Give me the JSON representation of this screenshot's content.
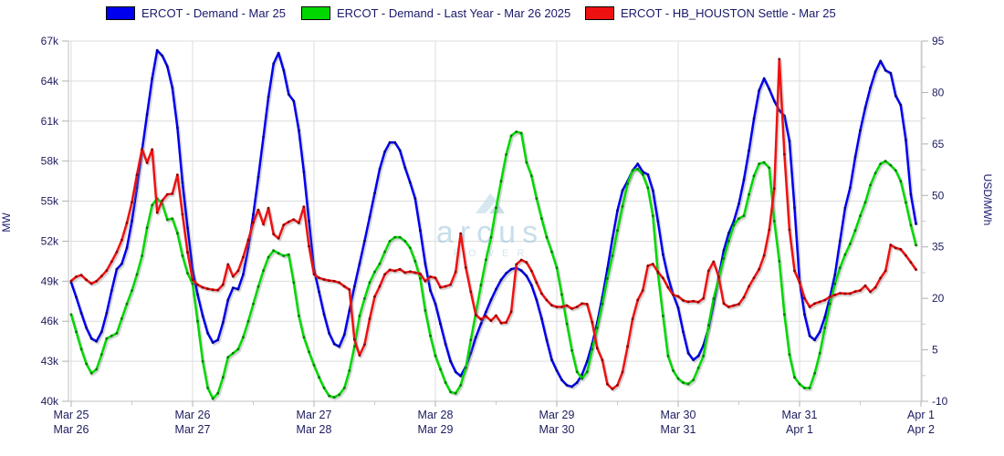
{
  "watermark": {
    "brand": "arcus",
    "word": "POWER",
    "color": "#9cc4da"
  },
  "chart_data": {
    "type": "line",
    "title": "",
    "x_unit": "hours",
    "x_start": "Mar 25 00:00",
    "hours_per_day": 24,
    "days": 7,
    "grid": true,
    "legend_position": "top",
    "axes": {
      "left": {
        "title": "MW",
        "range": [
          40000,
          67000
        ],
        "tick_labels": [
          "67k",
          "64k",
          "61k",
          "58k",
          "55k",
          "52k",
          "49k",
          "46k",
          "43k",
          "40k"
        ],
        "tick_values": [
          67,
          64,
          61,
          58,
          55,
          52,
          49,
          46,
          43,
          40
        ]
      },
      "right": {
        "title": "USD/MWh",
        "range": [
          -10,
          95
        ],
        "tick_labels": [
          "95",
          "80",
          "65",
          "50",
          "35",
          "20",
          "5",
          "-10"
        ],
        "tick_values": [
          95,
          80,
          65,
          50,
          35,
          20,
          5,
          -10
        ]
      },
      "x": {
        "top_labels": [
          "Mar 25",
          "Mar 26",
          "Mar 27",
          "Mar 28",
          "Mar 29",
          "Mar 30",
          "Mar 31",
          "Apr 1"
        ],
        "bottom_labels": [
          "Mar 26",
          "Mar 27",
          "Mar 28",
          "Mar 29",
          "Mar 30",
          "Mar 31",
          "Apr 1",
          "Apr 2"
        ]
      }
    },
    "series": [
      {
        "name": "ERCOT - Demand - Mar 25",
        "axis": "left",
        "units": "k MW",
        "color": "#0000ee",
        "marker_color": "#00008b",
        "values": [
          48.9,
          47.8,
          46.6,
          45.5,
          44.7,
          44.5,
          45.2,
          46.6,
          48.3,
          49.9,
          50.3,
          51.5,
          53.5,
          56.0,
          58.8,
          61.5,
          64.2,
          66.3,
          65.9,
          65.1,
          63.5,
          60.5,
          56.4,
          53.0,
          49.8,
          48.0,
          46.4,
          45.1,
          44.4,
          44.6,
          45.9,
          47.6,
          48.5,
          48.4,
          49.5,
          51.5,
          54.0,
          56.8,
          59.8,
          62.8,
          65.3,
          66.1,
          64.8,
          63.0,
          62.5,
          60.3,
          57.2,
          53.5,
          49.9,
          48.2,
          46.5,
          45.1,
          44.3,
          44.1,
          45.0,
          46.8,
          48.6,
          50.3,
          52.0,
          53.8,
          55.6,
          57.4,
          58.7,
          59.4,
          59.4,
          58.8,
          57.5,
          56.4,
          55.2,
          52.8,
          50.3,
          48.3,
          47.3,
          45.8,
          44.3,
          43.0,
          42.2,
          41.9,
          42.6,
          43.6,
          44.8,
          45.8,
          46.7,
          47.6,
          48.4,
          49.1,
          49.6,
          49.9,
          50.0,
          49.8,
          49.4,
          48.7,
          47.6,
          46.2,
          44.6,
          43.1,
          42.3,
          41.6,
          41.2,
          41.1,
          41.4,
          42.0,
          43.0,
          44.3,
          45.9,
          47.8,
          49.9,
          52.2,
          54.3,
          55.8,
          56.5,
          57.3,
          57.8,
          57.2,
          57.0,
          55.8,
          53.5,
          51.0,
          49.3,
          48.0,
          47.0,
          45.2,
          43.6,
          43.1,
          43.4,
          44.2,
          45.5,
          47.3,
          49.3,
          51.3,
          52.6,
          53.5,
          54.8,
          56.6,
          58.8,
          61.2,
          63.3,
          64.2,
          63.4,
          62.5,
          61.8,
          61.4,
          59.5,
          54.5,
          49.0,
          46.5,
          44.9,
          44.6,
          45.2,
          46.3,
          47.8,
          49.5,
          52.0,
          54.5,
          56.0,
          58.3,
          60.3,
          62.0,
          63.5,
          64.7,
          65.5,
          64.8,
          64.6,
          62.9,
          62.2,
          59.6,
          55.5,
          53.3
        ]
      },
      {
        "name": "ERCOT - Demand - Last Year - Mar 26 2025",
        "axis": "left",
        "units": "k MW",
        "color": "#00d800",
        "marker_color": "#007a00",
        "values": [
          46.5,
          45.2,
          43.9,
          42.8,
          42.1,
          42.4,
          43.5,
          44.7,
          44.9,
          45.1,
          46.2,
          47.3,
          48.3,
          49.5,
          50.9,
          53.0,
          54.7,
          55.2,
          54.8,
          53.6,
          53.7,
          52.6,
          50.9,
          49.6,
          48.8,
          46.0,
          43.0,
          41.0,
          40.2,
          40.6,
          41.8,
          43.3,
          43.6,
          43.9,
          44.8,
          46.0,
          47.3,
          48.6,
          49.8,
          50.8,
          51.3,
          51.1,
          50.9,
          51.0,
          48.9,
          46.4,
          44.8,
          43.7,
          42.7,
          41.8,
          41.0,
          40.4,
          40.3,
          40.5,
          41.0,
          42.3,
          44.1,
          46.4,
          47.7,
          48.9,
          49.7,
          50.3,
          51.2,
          52.0,
          52.3,
          52.3,
          52.0,
          51.5,
          50.5,
          49.2,
          46.8,
          44.9,
          43.4,
          42.4,
          41.4,
          40.7,
          40.6,
          41.2,
          42.5,
          44.6,
          46.6,
          48.7,
          50.6,
          52.3,
          54.5,
          56.5,
          58.5,
          59.9,
          60.2,
          60.1,
          57.9,
          56.9,
          55.2,
          53.7,
          52.3,
          51.2,
          50.0,
          48.0,
          45.8,
          43.8,
          42.2,
          41.7,
          42.2,
          43.9,
          45.5,
          47.3,
          49.2,
          50.9,
          52.8,
          54.6,
          56.3,
          57.3,
          57.4,
          57.0,
          56.0,
          53.9,
          49.6,
          46.4,
          43.4,
          42.3,
          41.7,
          41.4,
          41.3,
          41.6,
          42.5,
          43.4,
          45.7,
          47.7,
          49.2,
          50.7,
          52.0,
          53.2,
          53.7,
          53.9,
          55.5,
          56.9,
          57.8,
          57.9,
          57.5,
          53.5,
          50.5,
          46.5,
          43.5,
          41.8,
          41.3,
          41.0,
          41.0,
          42.1,
          43.6,
          45.5,
          47.3,
          48.8,
          50.0,
          51.0,
          51.8,
          52.8,
          53.9,
          54.9,
          56.2,
          57.1,
          57.8,
          58.0,
          57.7,
          57.3,
          56.5,
          54.9,
          53.2,
          51.7
        ]
      },
      {
        "name": "ERCOT - HB_HOUSTON Settle - Mar 25",
        "axis": "right",
        "units": "USD/MWh",
        "color": "#ee1111",
        "marker_color": "#8b0000",
        "values": [
          25.1,
          26.3,
          26.8,
          25.4,
          24.3,
          25.0,
          26.5,
          28.1,
          30.7,
          33.5,
          37.0,
          42.0,
          48.0,
          56.0,
          63.5,
          59.5,
          63.4,
          45.0,
          48.5,
          50.3,
          50.5,
          56.0,
          44.5,
          33.4,
          25.4,
          24.0,
          23.2,
          22.8,
          22.5,
          22.4,
          24.0,
          29.9,
          26.4,
          28.0,
          32.0,
          37.0,
          42.1,
          45.8,
          41.6,
          46.3,
          38.7,
          37.5,
          41.4,
          42.3,
          43.0,
          42.0,
          46.7,
          35.2,
          27.0,
          26.0,
          25.5,
          25.2,
          25.0,
          24.6,
          23.5,
          22.6,
          8.0,
          3.4,
          6.5,
          14.0,
          20.5,
          23.5,
          27.0,
          28.3,
          28.0,
          28.5,
          27.5,
          27.8,
          27.5,
          27.2,
          25.0,
          26.3,
          26.0,
          23.2,
          23.5,
          24.0,
          27.7,
          38.9,
          29.0,
          21.9,
          15.2,
          13.9,
          14.8,
          13.5,
          15.0,
          12.8,
          13.0,
          16.1,
          29.9,
          31.2,
          30.5,
          28.0,
          24.6,
          21.4,
          19.5,
          18.0,
          17.5,
          17.5,
          17.9,
          17.0,
          17.5,
          18.5,
          18.3,
          13.0,
          5.5,
          2.0,
          -5.0,
          -6.4,
          -5.3,
          -1.5,
          6.0,
          14.0,
          19.5,
          22.3,
          29.5,
          30.0,
          27.7,
          25.9,
          23.2,
          21.0,
          20.6,
          19.4,
          19.0,
          19.2,
          18.9,
          20.0,
          28.0,
          30.7,
          26.3,
          18.5,
          17.5,
          17.9,
          18.3,
          20.3,
          23.5,
          26.0,
          28.5,
          32.5,
          40.0,
          52.0,
          89.7,
          62.0,
          40.0,
          28.0,
          24.6,
          20.0,
          17.5,
          18.5,
          19.0,
          19.5,
          20.5,
          21.0,
          21.5,
          21.4,
          21.4,
          22.0,
          22.3,
          23.7,
          21.9,
          23.2,
          25.9,
          28.0,
          35.6,
          34.7,
          34.3,
          32.5,
          30.5,
          28.4
        ]
      }
    ]
  }
}
